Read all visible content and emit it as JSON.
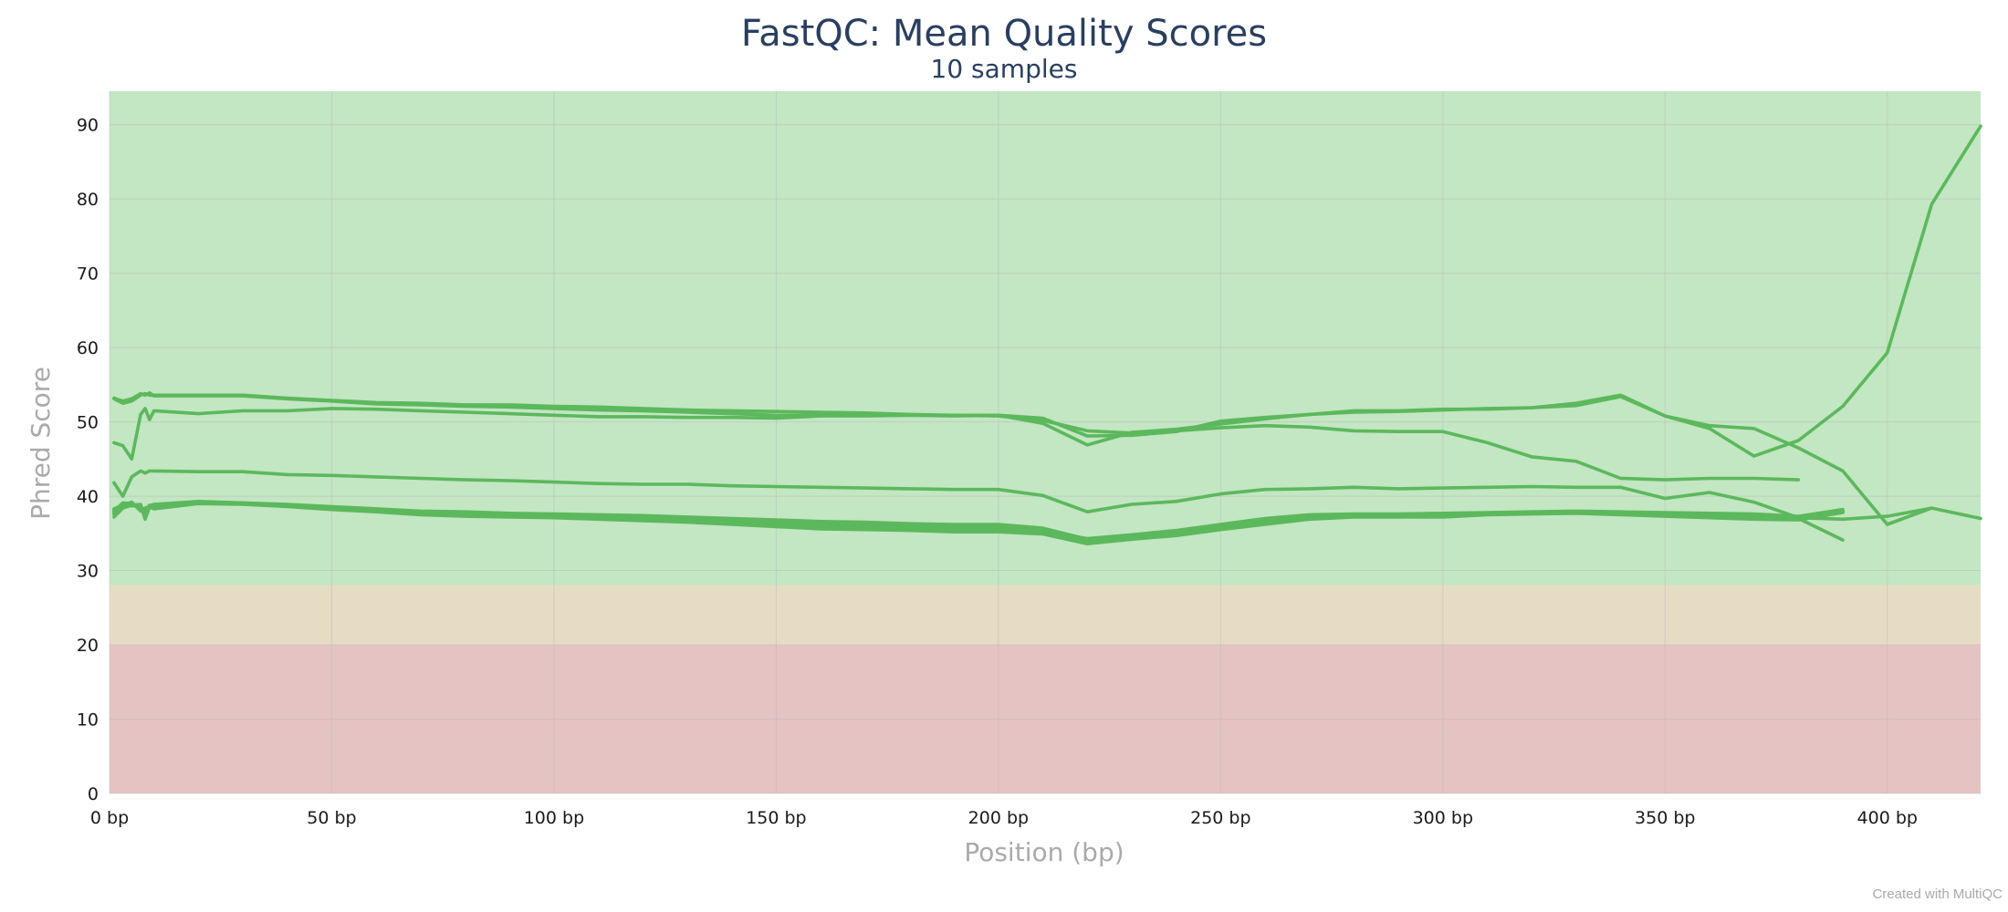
{
  "chart_data": {
    "type": "line",
    "title": "FastQC: Mean Quality Scores",
    "subtitle": "10 samples",
    "xlabel": "Position (bp)",
    "ylabel": "Phred Score",
    "xlim": [
      0,
      421
    ],
    "ylim": [
      0,
      94.5
    ],
    "x_ticks": [
      0,
      50,
      100,
      150,
      200,
      250,
      300,
      350,
      400
    ],
    "x_tick_labels": [
      "0 bp",
      "50 bp",
      "100 bp",
      "150 bp",
      "200 bp",
      "250 bp",
      "300 bp",
      "350 bp",
      "400 bp"
    ],
    "y_ticks": [
      0,
      10,
      20,
      30,
      40,
      50,
      60,
      70,
      80,
      90
    ],
    "y_tick_labels": [
      "0",
      "10",
      "20",
      "30",
      "40",
      "50",
      "60",
      "70",
      "80",
      "90"
    ],
    "grid": true,
    "legend": "none",
    "line_color": "#5cb85c",
    "bands": [
      {
        "from": 28,
        "to": 94.5,
        "color": "#c3e6c3"
      },
      {
        "from": 20,
        "to": 28,
        "color": "#e6dcc3"
      },
      {
        "from": 0,
        "to": 20,
        "color": "#e6c3c3"
      }
    ],
    "series": [
      {
        "x": [
          1,
          3,
          5,
          7,
          8,
          9,
          10,
          20,
          30,
          40,
          50,
          60,
          70,
          80,
          90,
          100,
          110,
          120,
          130,
          140,
          150,
          160,
          170,
          180,
          190,
          200,
          210,
          220,
          230,
          240,
          250,
          260,
          270,
          280,
          290,
          300,
          310,
          320,
          330,
          340,
          350,
          360,
          370,
          380
        ],
        "y": [
          53.1,
          52.5,
          52.8,
          53.6,
          53.8,
          53.6,
          53.6,
          53.6,
          53.6,
          53.2,
          52.9,
          52.6,
          52.5,
          52.3,
          52.3,
          52.1,
          52.0,
          51.8,
          51.6,
          51.5,
          51.4,
          51.3,
          51.2,
          51.0,
          50.9,
          50.8,
          50.2,
          48.8,
          48.5,
          48.8,
          49.2,
          49.5,
          49.3,
          48.8,
          48.7,
          48.7,
          47.2,
          45.3,
          44.7,
          42.4,
          42.2,
          42.4,
          42.4,
          42.2
        ]
      },
      {
        "x": [
          1,
          3,
          5,
          7,
          8,
          9,
          10,
          20,
          30,
          40,
          50,
          60,
          70,
          80,
          90,
          100,
          110,
          120,
          130,
          140,
          150,
          160,
          170,
          180,
          190,
          200,
          210,
          220,
          230,
          240,
          250,
          260,
          270,
          280,
          290,
          300,
          310,
          320,
          330,
          340,
          350,
          360,
          370,
          380,
          390,
          400,
          410,
          421
        ],
        "y": [
          53.2,
          52.8,
          53.1,
          53.8,
          53.6,
          53.9,
          53.5,
          53.5,
          53.5,
          53.1,
          52.8,
          52.4,
          52.3,
          52.1,
          52.0,
          51.8,
          51.6,
          51.5,
          51.3,
          51.1,
          50.9,
          50.9,
          50.9,
          50.9,
          50.8,
          50.9,
          49.8,
          46.9,
          48.6,
          49.0,
          49.7,
          50.4,
          51.0,
          51.5,
          51.5,
          51.7,
          51.7,
          51.9,
          52.5,
          53.6,
          50.8,
          49.1,
          45.4,
          47.5,
          52.1,
          59.3,
          79.3,
          89.8
        ]
      },
      {
        "x": [
          1,
          3,
          5,
          7,
          8,
          9,
          10,
          20,
          30,
          40,
          50,
          60,
          70,
          80,
          90,
          100,
          110,
          120,
          130,
          140,
          150,
          160,
          170,
          180,
          190,
          200,
          210,
          220,
          230,
          240,
          250,
          260,
          270,
          280,
          290,
          300,
          310,
          320,
          330,
          340,
          350,
          360,
          370,
          380,
          390,
          400,
          410
        ],
        "y": [
          47.2,
          46.8,
          45.0,
          51.0,
          51.8,
          50.3,
          51.5,
          51.1,
          51.5,
          51.5,
          51.8,
          51.7,
          51.5,
          51.3,
          51.1,
          50.9,
          50.7,
          50.7,
          50.6,
          50.6,
          50.5,
          50.8,
          50.8,
          50.9,
          50.9,
          50.9,
          50.5,
          48.1,
          48.2,
          48.7,
          50.1,
          50.6,
          51.0,
          51.3,
          51.4,
          51.6,
          51.8,
          51.9,
          52.2,
          53.4,
          50.8,
          49.5,
          49.1,
          46.5,
          43.4,
          36.2,
          38.4
        ]
      },
      {
        "x": [
          1,
          3,
          5,
          7,
          8,
          9,
          10,
          20,
          30,
          40,
          50,
          60,
          70,
          80,
          90,
          100,
          110,
          120,
          130,
          140,
          150,
          160,
          170,
          180,
          190,
          200,
          210,
          220,
          230,
          240,
          250,
          260,
          270,
          280,
          290,
          300,
          310,
          320,
          330,
          340,
          350,
          360,
          370,
          380,
          390,
          400,
          410,
          421
        ],
        "y": [
          41.8,
          40.0,
          42.6,
          43.4,
          43.1,
          43.4,
          43.4,
          43.3,
          43.3,
          42.9,
          42.8,
          42.6,
          42.4,
          42.2,
          42.1,
          41.9,
          41.7,
          41.6,
          41.6,
          41.4,
          41.3,
          41.2,
          41.1,
          41.0,
          40.9,
          40.9,
          40.1,
          37.9,
          38.9,
          39.3,
          40.3,
          40.9,
          41.0,
          41.2,
          41.0,
          41.1,
          41.2,
          41.3,
          41.2,
          41.2,
          39.7,
          40.5,
          39.2,
          37.1,
          36.9,
          37.3,
          38.4,
          37.0
        ]
      },
      {
        "x": [
          1,
          3,
          5,
          7,
          8,
          9,
          10,
          20,
          30,
          40,
          50,
          60,
          70,
          80,
          90,
          100,
          110,
          120,
          130,
          140,
          150,
          160,
          170,
          180,
          190,
          200,
          210,
          220,
          230,
          240,
          250,
          260,
          270,
          280,
          290,
          300,
          310,
          320,
          330,
          340,
          350,
          360,
          370,
          380,
          390
        ],
        "y": [
          37.2,
          38.4,
          38.8,
          38.9,
          36.9,
          38.5,
          38.3,
          39.0,
          38.9,
          38.6,
          38.2,
          37.9,
          37.5,
          37.3,
          37.2,
          37.1,
          36.9,
          36.7,
          36.5,
          36.2,
          35.9,
          35.6,
          35.5,
          35.4,
          35.2,
          35.2,
          34.9,
          33.6,
          34.2,
          34.7,
          35.5,
          36.2,
          36.9,
          37.2,
          37.2,
          37.2,
          37.5,
          37.6,
          37.7,
          37.5,
          37.3,
          37.1,
          36.9,
          36.8,
          37.8
        ]
      },
      {
        "x": [
          1,
          3,
          5,
          7,
          8,
          9,
          10,
          20,
          30,
          40,
          50,
          60,
          70,
          80,
          90,
          100,
          110,
          120,
          130,
          140,
          150,
          160,
          170,
          180,
          190,
          200,
          210,
          220,
          230,
          240,
          250,
          260,
          270,
          280,
          290,
          300,
          310,
          320,
          330,
          340,
          350,
          360,
          370,
          380,
          390
        ],
        "y": [
          37.6,
          38.7,
          38.7,
          38.7,
          37.0,
          38.7,
          38.6,
          39.2,
          39.0,
          38.7,
          38.3,
          38.0,
          37.7,
          37.5,
          37.4,
          37.3,
          37.1,
          37.0,
          36.8,
          36.6,
          36.3,
          36.1,
          35.9,
          35.7,
          35.6,
          35.6,
          35.1,
          33.9,
          34.5,
          35.0,
          35.9,
          36.6,
          37.2,
          37.4,
          37.4,
          37.5,
          37.7,
          37.8,
          37.9,
          37.7,
          37.6,
          37.5,
          37.3,
          37.1,
          38.1
        ]
      },
      {
        "x": [
          1,
          3,
          5,
          7,
          8,
          9,
          10,
          20,
          30,
          40,
          50,
          60,
          70,
          80,
          90,
          100,
          110,
          120,
          130,
          140,
          150,
          160,
          170,
          180,
          190,
          200,
          210,
          220,
          230,
          240,
          250,
          260,
          270,
          280,
          290,
          300,
          310,
          320,
          330,
          340,
          350,
          360,
          370,
          380,
          390
        ],
        "y": [
          38.1,
          39.0,
          39.1,
          38.3,
          38.2,
          38.7,
          38.9,
          39.3,
          39.1,
          38.9,
          38.6,
          38.3,
          38.0,
          37.9,
          37.7,
          37.6,
          37.5,
          37.4,
          37.2,
          37.0,
          36.8,
          36.6,
          36.5,
          36.3,
          36.2,
          36.2,
          35.7,
          34.2,
          34.8,
          35.4,
          36.2,
          37.0,
          37.5,
          37.6,
          37.6,
          37.7,
          37.8,
          37.9,
          38.0,
          37.9,
          37.8,
          37.7,
          37.6,
          37.3,
          38.2
        ]
      },
      {
        "x": [
          1,
          3,
          5,
          7,
          8,
          9,
          10,
          20,
          30,
          40,
          50,
          60,
          70,
          80,
          90,
          100,
          110,
          120,
          130,
          140,
          150,
          160,
          170,
          180,
          190,
          200,
          210,
          220,
          230,
          240,
          250,
          260,
          270,
          280,
          290,
          300,
          310,
          320,
          330,
          340,
          350,
          360,
          370,
          380,
          390
        ],
        "y": [
          38.0,
          39.1,
          39.0,
          38.5,
          38.1,
          38.8,
          38.8,
          39.2,
          39.1,
          38.8,
          38.5,
          38.1,
          37.8,
          37.6,
          37.5,
          37.4,
          37.3,
          37.1,
          37.0,
          36.8,
          36.6,
          36.4,
          36.3,
          36.1,
          36.0,
          35.9,
          35.5,
          34.0,
          34.6,
          35.2,
          36.0,
          36.8,
          37.3,
          37.5,
          37.5,
          37.6,
          37.7,
          37.8,
          37.9,
          37.8,
          37.7,
          37.6,
          37.4,
          37.2,
          38.0
        ]
      },
      {
        "x": [
          1,
          3,
          5,
          7,
          8,
          9,
          10,
          20,
          30,
          40,
          50,
          60,
          70,
          80,
          90,
          100,
          110,
          120,
          130,
          140,
          150,
          160,
          170,
          180,
          190,
          200,
          210,
          220,
          230,
          240,
          250,
          260,
          270,
          280,
          290,
          300,
          310,
          320,
          330,
          340,
          350,
          360,
          370,
          380,
          390
        ],
        "y": [
          38.3,
          38.8,
          39.2,
          38.0,
          38.4,
          38.6,
          38.7,
          39.1,
          39.0,
          38.7,
          38.4,
          38.0,
          37.7,
          37.4,
          37.3,
          37.2,
          37.0,
          36.9,
          36.7,
          36.4,
          36.1,
          35.9,
          35.7,
          35.5,
          35.4,
          35.4,
          35.0,
          33.8,
          34.4,
          34.9,
          35.7,
          36.4,
          37.0,
          37.3,
          37.3,
          37.4,
          37.6,
          37.7,
          37.8,
          37.6,
          37.4,
          37.3,
          37.1,
          36.9,
          37.9
        ]
      },
      {
        "x": [
          1,
          3,
          5,
          7,
          8,
          9,
          10,
          20,
          30,
          40,
          50,
          60,
          70,
          80,
          90,
          100,
          110,
          120,
          130,
          140,
          150,
          160,
          170,
          180,
          190,
          200,
          210,
          220,
          230,
          240,
          250,
          260,
          270,
          280,
          290,
          300,
          310,
          320,
          330,
          340,
          350,
          360,
          370,
          380,
          390
        ],
        "y": [
          37.8,
          38.9,
          38.9,
          38.6,
          37.6,
          38.6,
          38.5,
          39.2,
          39.0,
          38.8,
          38.3,
          38.0,
          37.6,
          37.4,
          37.3,
          37.2,
          37.1,
          37.0,
          36.9,
          36.7,
          36.5,
          36.2,
          36.0,
          35.9,
          35.8,
          35.7,
          35.3,
          34.3,
          34.8,
          35.3,
          36.1,
          36.7,
          37.3,
          37.4,
          37.4,
          37.5,
          37.6,
          37.7,
          37.8,
          37.7,
          37.6,
          37.4,
          37.2,
          37.0,
          34.1
        ]
      }
    ],
    "credit": "Created with MultiQC"
  }
}
